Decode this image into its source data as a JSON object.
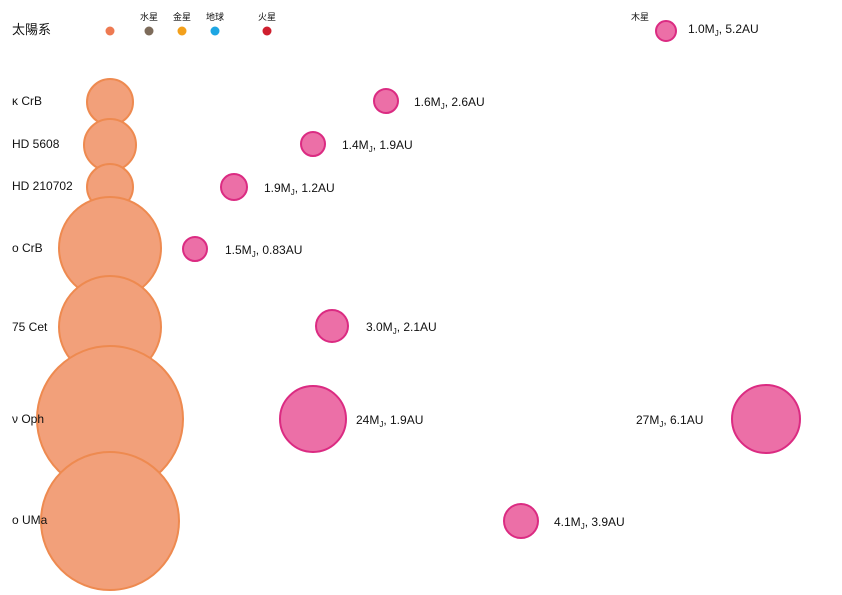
{
  "colors": {
    "star_fill": "#f2a07a",
    "star_stroke": "#ee8a50",
    "planet_fill": "#ec6fa7",
    "planet_stroke": "#db2b82",
    "sun": "#ee7a52",
    "mercury": "#7d6b5a",
    "venus": "#f3a01b",
    "earth": "#1ea6e3",
    "mars": "#cf1f2e",
    "jupiter_fill": "#ec6fa7"
  },
  "solar_system": {
    "label": "太陽系",
    "planets": [
      {
        "label": "水星",
        "color_key": "mercury"
      },
      {
        "label": "金星",
        "color_key": "venus"
      },
      {
        "label": "地球",
        "color_key": "earth"
      },
      {
        "label": "火星",
        "color_key": "mars"
      }
    ],
    "jupiter": {
      "label": "木星",
      "mass": "1.0M",
      "sub": "J",
      "dist": ", 5.2AU"
    }
  },
  "systems": [
    {
      "name": "κ CrB",
      "planets": [
        {
          "mass": "1.6M",
          "sub": "J",
          "dist": ", 2.6AU"
        }
      ]
    },
    {
      "name": "HD 5608",
      "planets": [
        {
          "mass": "1.4M",
          "sub": "J",
          "dist": ", 1.9AU"
        }
      ]
    },
    {
      "name": "HD 210702",
      "planets": [
        {
          "mass": "1.9M",
          "sub": "J",
          "dist": ", 1.2AU"
        }
      ]
    },
    {
      "name": "ο CrB",
      "planets": [
        {
          "mass": "1.5M",
          "sub": "J",
          "dist": ", 0.83AU"
        }
      ]
    },
    {
      "name": "75 Cet",
      "planets": [
        {
          "mass": "3.0M",
          "sub": "J",
          "dist": ", 2.1AU"
        }
      ]
    },
    {
      "name": "ν Oph",
      "planets": [
        {
          "mass": "24M",
          "sub": "J",
          "dist": ", 1.9AU"
        },
        {
          "mass": "27M",
          "sub": "J",
          "dist": ", 6.1AU"
        }
      ]
    },
    {
      "name": "ο UMa",
      "planets": [
        {
          "mass": "4.1M",
          "sub": "J",
          "dist": ", 3.9AU"
        }
      ]
    }
  ]
}
